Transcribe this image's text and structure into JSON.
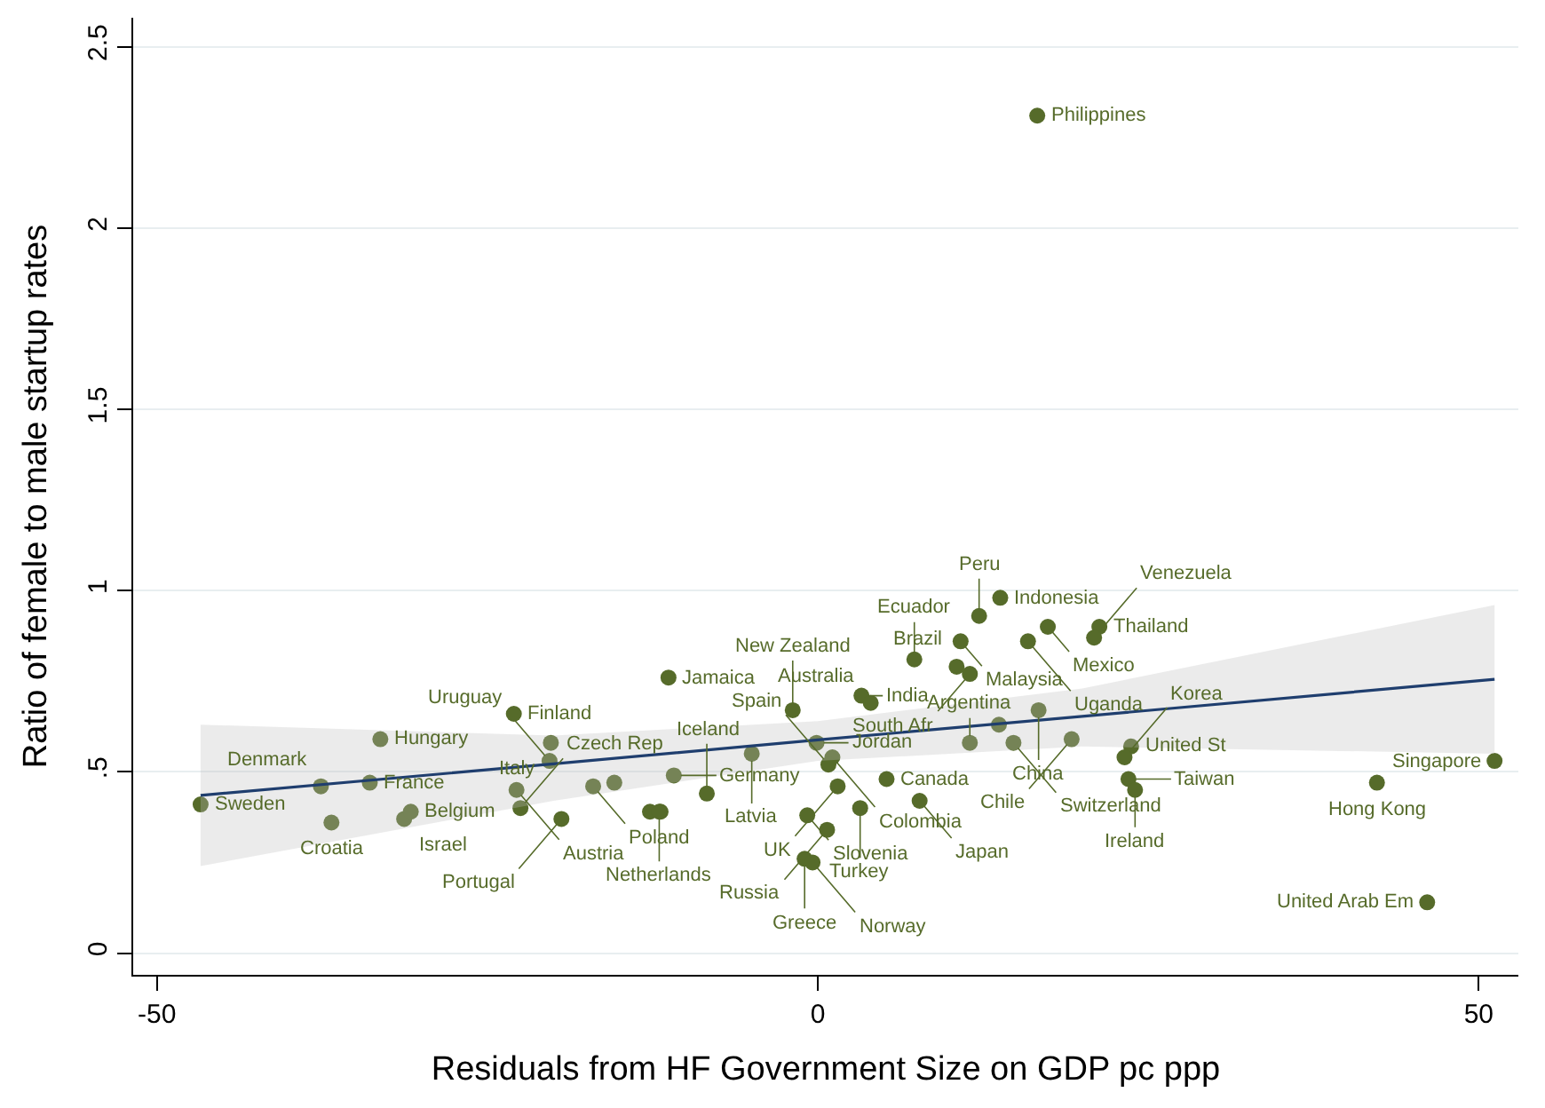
{
  "chart_data": {
    "type": "scatter",
    "xlabel": "Residuals from HF Government Size on GDP pc ppp",
    "ylabel": "Ratio of female to male startup rates",
    "xlim": [
      -51.8,
      53
    ],
    "xticks": [
      -50,
      0,
      50
    ],
    "ylim": [
      -0.06,
      2.58
    ],
    "yticks": [
      0,
      {
        "value": 0.5,
        "label": ".5"
      },
      1,
      1.5,
      2,
      2.5
    ],
    "grid": "y",
    "marker": "circle",
    "series": [
      {
        "color": "#566b2a",
        "x": [
          -46.7,
          -37.6,
          -36.8,
          -33.9,
          -33.1,
          -31.3,
          -30.8,
          -23.0,
          -22.8,
          -22.5,
          -20.3,
          -20.2,
          -19.4,
          -17.0,
          -15.4,
          -12.7,
          -11.9,
          -11.3,
          -10.9,
          -8.4,
          -12.0,
          -5.0,
          -1.9,
          -0.1,
          1.1,
          0.8,
          1.5,
          3.2,
          5.2,
          7.7,
          -0.8,
          0.7,
          -1.0,
          -0.4,
          3.3,
          4.0,
          7.3,
          10.8,
          12.2,
          13.8,
          10.5,
          11.5,
          15.9,
          17.4,
          21.3,
          20.9,
          16.7,
          13.7,
          14.8,
          19.2,
          11.5,
          23.7,
          23.2,
          23.5,
          24.0,
          51.2,
          42.3,
          46.1,
          16.6
        ],
        "values": [
          0.41,
          0.46,
          0.36,
          0.47,
          0.59,
          0.37,
          0.39,
          0.66,
          0.45,
          0.4,
          0.53,
          0.58,
          0.37,
          0.46,
          0.47,
          0.39,
          0.39,
          0.76,
          0.49,
          0.44,
          0.39,
          0.55,
          0.67,
          0.58,
          0.54,
          0.52,
          0.46,
          0.4,
          0.48,
          0.42,
          0.38,
          0.34,
          0.26,
          0.25,
          0.71,
          0.69,
          0.81,
          0.86,
          0.93,
          0.98,
          0.79,
          0.77,
          0.86,
          0.9,
          0.9,
          0.87,
          0.67,
          0.63,
          0.58,
          0.59,
          0.58,
          0.57,
          0.54,
          0.48,
          0.45,
          0.53,
          0.47,
          0.14,
          2.31
        ]
      },
      {
        "type": "line",
        "color": "#1f3e6e",
        "marker": "none",
        "x": [
          -46.7,
          -20,
          0,
          20,
          51.2
        ],
        "values": [
          0.435,
          0.522,
          0.588,
          0.653,
          0.755
        ],
        "lower": [
          0.24,
          0.42,
          0.53,
          0.57,
          0.55
        ],
        "upper": [
          0.63,
          0.6,
          0.64,
          0.73,
          0.96
        ]
      }
    ],
    "annotations": [
      {
        "text": "Sweden",
        "x": -46.7,
        "y": 0.41
      },
      {
        "text": "Denmark",
        "x": -37.6,
        "y": 0.46
      },
      {
        "text": "Croatia",
        "x": -36.8,
        "y": 0.36
      },
      {
        "text": "France",
        "x": -33.9,
        "y": 0.47
      },
      {
        "text": "Hungary",
        "x": -33.1,
        "y": 0.59
      },
      {
        "text": "Israel",
        "x": -31.3,
        "y": 0.37
      },
      {
        "text": "Belgium",
        "x": -30.8,
        "y": 0.39
      },
      {
        "text": "Finland",
        "x": -23.0,
        "y": 0.66
      },
      {
        "text": "Austria",
        "x": -22.8,
        "y": 0.45
      },
      {
        "text": "Czech Rep",
        "x": -22.5,
        "y": 0.4
      },
      {
        "text": "Uruguay",
        "x": -20.3,
        "y": 0.53
      },
      {
        "text": "Italy",
        "x": -20.2,
        "y": 0.58
      },
      {
        "text": "Portugal",
        "x": -19.4,
        "y": 0.37
      },
      {
        "text": "Poland",
        "x": -17.0,
        "y": 0.46
      },
      {
        "text": "Jamaica",
        "x": -11.3,
        "y": 0.76
      },
      {
        "text": "Germany",
        "x": -10.9,
        "y": 0.49
      },
      {
        "text": "Iceland",
        "x": -8.4,
        "y": 0.44
      },
      {
        "text": "Netherlands",
        "x": -12.0,
        "y": 0.39
      },
      {
        "text": "Latvia",
        "x": -5.0,
        "y": 0.55
      },
      {
        "text": "New Zealand",
        "x": -1.9,
        "y": 0.67
      },
      {
        "text": "Jordan",
        "x": -0.1,
        "y": 0.58
      },
      {
        "text": "Colombia",
        "x": 1.1,
        "y": 0.54
      },
      {
        "text": "Spain",
        "x": 0.8,
        "y": 0.52
      },
      {
        "text": "UK",
        "x": 1.5,
        "y": 0.46
      },
      {
        "text": "Turkey",
        "x": 3.2,
        "y": 0.4
      },
      {
        "text": "Canada",
        "x": 5.2,
        "y": 0.48
      },
      {
        "text": "Japan",
        "x": 7.7,
        "y": 0.42
      },
      {
        "text": "Slovenia",
        "x": -0.8,
        "y": 0.38
      },
      {
        "text": "Russia",
        "x": 0.7,
        "y": 0.34
      },
      {
        "text": "Greece",
        "x": -1.0,
        "y": 0.26
      },
      {
        "text": "Norway",
        "x": -0.4,
        "y": 0.25
      },
      {
        "text": "India",
        "x": 3.3,
        "y": 0.71
      },
      {
        "text": "Australia",
        "x": 4.0,
        "y": 0.69
      },
      {
        "text": "Ecuador",
        "x": 7.3,
        "y": 0.81
      },
      {
        "text": "Malaysia",
        "x": 10.8,
        "y": 0.86
      },
      {
        "text": "Peru",
        "x": 12.2,
        "y": 0.93
      },
      {
        "text": "Indonesia",
        "x": 13.8,
        "y": 0.98
      },
      {
        "text": "Brazil",
        "x": 10.5,
        "y": 0.79
      },
      {
        "text": "South Afr",
        "x": 11.5,
        "y": 0.77
      },
      {
        "text": "Uganda",
        "x": 15.9,
        "y": 0.86
      },
      {
        "text": "Mexico",
        "x": 17.4,
        "y": 0.9
      },
      {
        "text": "Thailand",
        "x": 21.3,
        "y": 0.9
      },
      {
        "text": "Venezuela",
        "x": 20.9,
        "y": 0.87
      },
      {
        "text": "China",
        "x": 16.7,
        "y": 0.67
      },
      {
        "text": "Switzerland",
        "x": 14.8,
        "y": 0.58
      },
      {
        "text": "Chile",
        "x": 19.2,
        "y": 0.59
      },
      {
        "text": "Argentina",
        "x": 11.5,
        "y": 0.58
      },
      {
        "text": "United St",
        "x": 23.7,
        "y": 0.57
      },
      {
        "text": "Korea",
        "x": 23.2,
        "y": 0.54
      },
      {
        "text": "Taiwan",
        "x": 23.5,
        "y": 0.48
      },
      {
        "text": "Ireland",
        "x": 24.0,
        "y": 0.45
      },
      {
        "text": "Singapore",
        "x": 51.2,
        "y": 0.53
      },
      {
        "text": "Hong Kong",
        "x": 42.3,
        "y": 0.47
      },
      {
        "text": "United Arab Em",
        "x": 46.1,
        "y": 0.14
      },
      {
        "text": "Philippines",
        "x": 16.6,
        "y": 2.31
      }
    ]
  }
}
